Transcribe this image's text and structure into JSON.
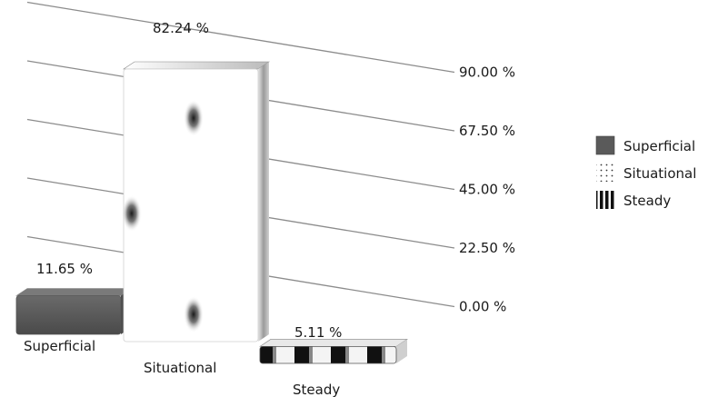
{
  "chart_data": {
    "type": "bar",
    "style": "3d",
    "categories": [
      "Superficial",
      "Situational",
      "Steady"
    ],
    "series": [
      {
        "name": "Superficial",
        "values": [
          11.65,
          null,
          null
        ],
        "pattern": "solid-dark-gray"
      },
      {
        "name": "Situational",
        "values": [
          null,
          82.24,
          null
        ],
        "pattern": "dotted"
      },
      {
        "name": "Steady",
        "values": [
          null,
          null,
          5.11
        ],
        "pattern": "vertical-stripes"
      }
    ],
    "values": [
      11.65,
      82.24,
      5.11
    ],
    "data_labels": [
      "11.65 %",
      "82.24 %",
      "5.11 %"
    ],
    "y_ticks": [
      "0.00 %",
      "22.50 %",
      "45.00 %",
      "67.50 %",
      "90.00 %"
    ],
    "ylim": [
      0,
      90
    ],
    "grid": true,
    "legend_position": "right",
    "colors": {
      "superficial": "#5a5a5a",
      "situational": "#ffffff",
      "steady": "#111111",
      "grid": "#8c8c8c"
    }
  }
}
